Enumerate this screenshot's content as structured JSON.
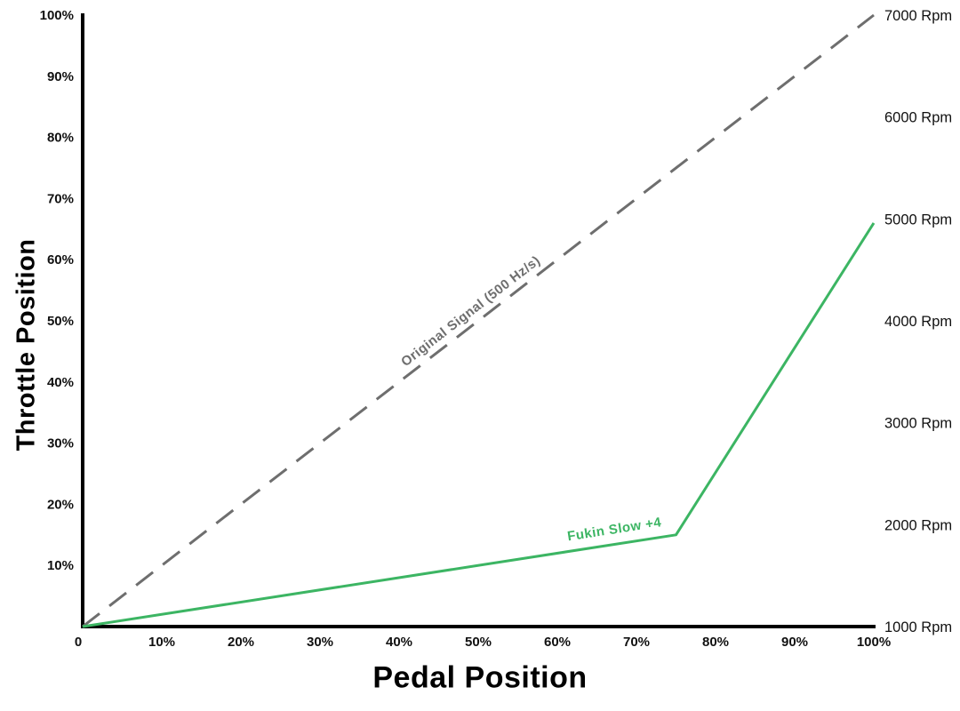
{
  "chart_data": {
    "type": "line",
    "title": "",
    "xlabel": "Pedal Position",
    "ylabel": "Throttle Position",
    "xlim": [
      0,
      100
    ],
    "ylim": [
      0,
      100
    ],
    "grid": false,
    "legend": "inline-line-labels",
    "x_tick_values": [
      0,
      10,
      20,
      30,
      40,
      50,
      60,
      70,
      80,
      90,
      100
    ],
    "x_tick_labels": [
      "0",
      "10%",
      "20%",
      "30%",
      "40%",
      "50%",
      "60%",
      "70%",
      "80%",
      "90%",
      "100%"
    ],
    "y_tick_values": [
      100,
      90,
      80,
      70,
      60,
      50,
      40,
      30,
      20,
      10
    ],
    "y_tick_labels": [
      "100%",
      "90%",
      "80%",
      "70%",
      "60%",
      "50%",
      "40%",
      "30%",
      "20%",
      "10%"
    ],
    "right_axis": {
      "min": 1000,
      "max": 7000,
      "tick_values": [
        7000,
        6000,
        5000,
        4000,
        3000,
        2000,
        1000
      ],
      "tick_labels": [
        "7000 Rpm",
        "6000 Rpm",
        "5000 Rpm",
        "4000 Rpm",
        "3000 Rpm",
        "2000 Rpm",
        "1000 Rpm"
      ]
    },
    "series": [
      {
        "name": "Original Signal (500 Hz/s)",
        "color": "#6e6e6e",
        "style": "dashed",
        "width": 3,
        "points": [
          [
            0,
            0
          ],
          [
            100,
            100
          ]
        ],
        "label_segment": 0,
        "label_frac": 0.5,
        "label_dy": -9
      },
      {
        "name": "Fukin Slow +4",
        "color": "#3cb563",
        "style": "solid",
        "width": 3,
        "points": [
          [
            0,
            0
          ],
          [
            75,
            15
          ],
          [
            100,
            66
          ]
        ],
        "label_segment": 0,
        "label_frac": 0.9,
        "label_dy": -12
      }
    ]
  },
  "colors": {
    "background": "#ffffff",
    "axis": "#000000",
    "tick_text": "#111111"
  }
}
